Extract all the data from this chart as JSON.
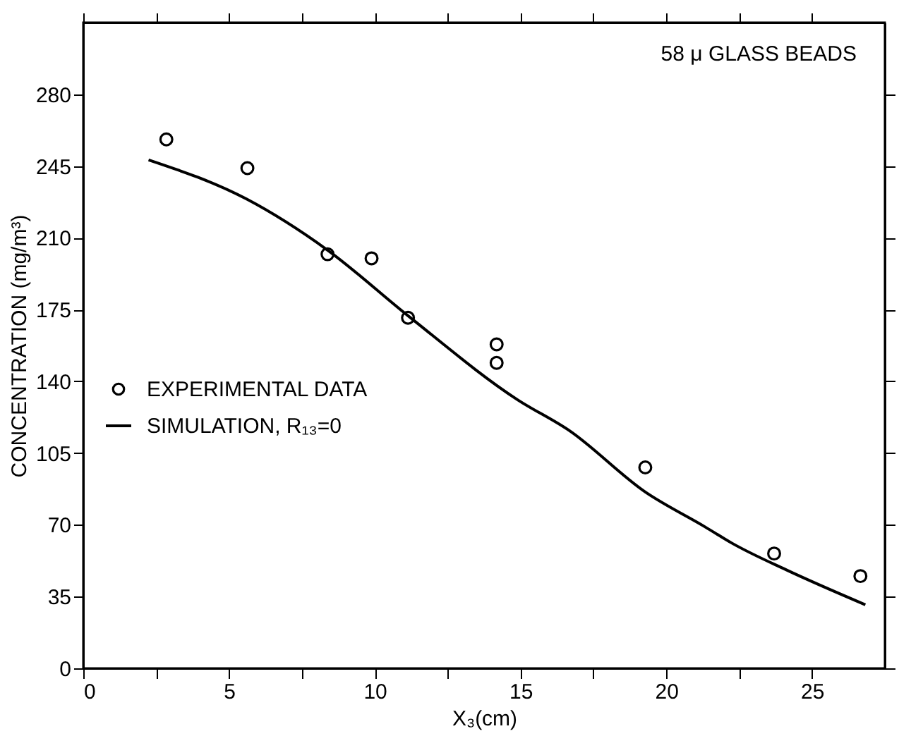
{
  "chart_data": {
    "type": "scatter",
    "xlabel": "X₃(cm)",
    "ylabel": "CONCENTRATION (mg/m³)",
    "annotations": [
      "58 μ GLASS BEADS"
    ],
    "xlim": [
      0,
      27.5
    ],
    "ylim": [
      0,
      315
    ],
    "xticks": [
      0,
      {
        "value": 2.5,
        "label": null
      },
      5,
      {
        "value": 7.5,
        "label": null
      },
      10,
      {
        "value": 12.5,
        "label": null
      },
      15,
      {
        "value": 17.5,
        "label": null
      },
      20,
      {
        "value": 22.5,
        "label": null
      },
      25
    ],
    "yticks": [
      0,
      35,
      70,
      105,
      140,
      175,
      210,
      245,
      280
    ],
    "grid": false,
    "legend": "left",
    "series": [
      {
        "name": "EXPERIMENTAL DATA",
        "marker": "circle",
        "color": "#000000",
        "x": [
          2.85,
          5.63,
          8.38,
          9.89,
          11.14,
          14.18,
          14.18,
          19.28,
          23.7,
          26.66
        ],
        "values": [
          258,
          244,
          202,
          200,
          171,
          158,
          149,
          98,
          56,
          45
        ]
      },
      {
        "name": "SIMULATION, R₁₃=0",
        "type": "line",
        "marker": "none",
        "line_style": "solid",
        "color": "#000000",
        "x": [
          2.24,
          5.59,
          8.38,
          11.14,
          14.9,
          16.67,
          19.28,
          21.33,
          22.26,
          24.12,
          26.83
        ],
        "values": [
          248,
          229,
          204,
          172,
          131,
          116,
          86,
          69,
          61,
          48,
          31
        ]
      }
    ]
  }
}
